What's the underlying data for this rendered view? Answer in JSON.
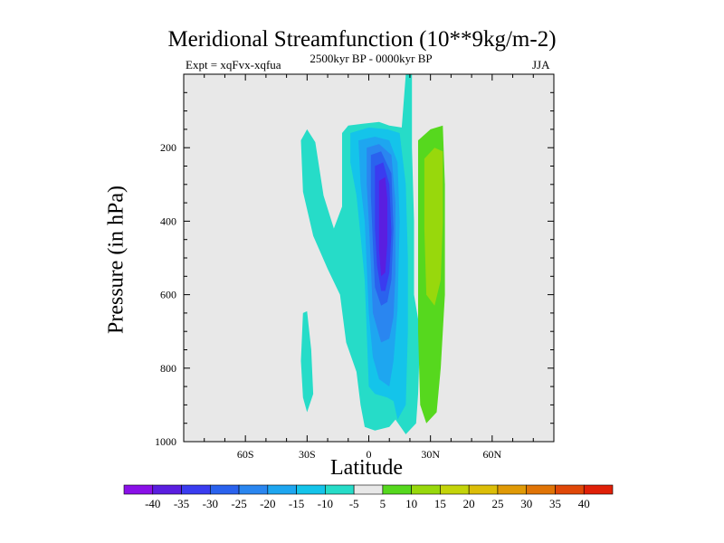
{
  "chart_data": {
    "type": "contour",
    "title": "Meridional Streamfunction (10**9kg/m-2)",
    "left_annotation": "Expt = xqFvx-xqfua",
    "center_annotation": "2500kyr BP - 0000kyr BP",
    "right_annotation": "JJA",
    "xlabel": "Latitude",
    "ylabel": "Pressure (in hPa)",
    "x_ticks": [
      {
        "value": -60,
        "label": "60S"
      },
      {
        "value": -30,
        "label": "30S"
      },
      {
        "value": 0,
        "label": "0"
      },
      {
        "value": 30,
        "label": "30N"
      },
      {
        "value": 60,
        "label": "60N"
      }
    ],
    "y_ticks": [
      {
        "value": 200,
        "label": "200"
      },
      {
        "value": 400,
        "label": "400"
      },
      {
        "value": 600,
        "label": "600"
      },
      {
        "value": 800,
        "label": "800"
      },
      {
        "value": 1000,
        "label": "1000"
      }
    ],
    "xlim": [
      -90,
      90
    ],
    "ylim": [
      0,
      1000
    ],
    "background_color": "#e8e8e8",
    "colorbar": {
      "labels": [
        "-40",
        "-35",
        "-30",
        "-25",
        "-20",
        "-15",
        "-10",
        "-5",
        "5",
        "10",
        "15",
        "20",
        "25",
        "30",
        "35",
        "40"
      ],
      "colors": [
        "#8a10e8",
        "#5a1ee0",
        "#3a3cf0",
        "#2a62ee",
        "#2a86f0",
        "#1ea6f0",
        "#14c4ea",
        "#26dcc8",
        "#e8e8e8",
        "#56d81e",
        "#98d80c",
        "#c4d40a",
        "#dcbe08",
        "#e09a06",
        "#e07406",
        "#e04808",
        "#e02008"
      ]
    },
    "regions": [
      {
        "name": "region-sh-polar-minus5",
        "level": "-5",
        "points": [
          [
            -30,
            920
          ],
          [
            -27,
            870
          ],
          [
            -28,
            750
          ],
          [
            -30,
            645
          ],
          [
            -32,
            650
          ],
          [
            -33,
            780
          ],
          [
            -32,
            880
          ]
        ]
      },
      {
        "name": "region-sh-minus5",
        "level": "-5",
        "points": [
          [
            -33,
            180
          ],
          [
            -30,
            150
          ],
          [
            -26,
            185
          ],
          [
            -22,
            330
          ],
          [
            -17,
            420
          ],
          [
            -13,
            360
          ],
          [
            -13,
            250
          ],
          [
            -13,
            160
          ],
          [
            -10,
            140
          ],
          [
            -3,
            135
          ],
          [
            5,
            130
          ],
          [
            10,
            140
          ],
          [
            16,
            145
          ],
          [
            18,
            0
          ],
          [
            21,
            0
          ],
          [
            21,
            200
          ],
          [
            22,
            400
          ],
          [
            22,
            600
          ],
          [
            25,
            700
          ],
          [
            24,
            870
          ],
          [
            23,
            950
          ],
          [
            18,
            980
          ],
          [
            13,
            940
          ],
          [
            10,
            960
          ],
          [
            3,
            970
          ],
          [
            -2,
            960
          ],
          [
            -4,
            900
          ],
          [
            -6,
            810
          ],
          [
            -11,
            730
          ],
          [
            -14,
            600
          ],
          [
            -20,
            530
          ],
          [
            -27,
            440
          ],
          [
            -32,
            320
          ]
        ]
      },
      {
        "name": "region-minus10",
        "level": "-10",
        "points": [
          [
            -9,
            160
          ],
          [
            0,
            145
          ],
          [
            9,
            150
          ],
          [
            15,
            160
          ],
          [
            18,
            300
          ],
          [
            19,
            500
          ],
          [
            19,
            700
          ],
          [
            18,
            900
          ],
          [
            14,
            940
          ],
          [
            12,
            890
          ],
          [
            9,
            880
          ],
          [
            3,
            870
          ],
          [
            0,
            850
          ],
          [
            -1,
            700
          ],
          [
            -2,
            560
          ],
          [
            -4,
            440
          ],
          [
            -6,
            330
          ],
          [
            -9,
            240
          ]
        ]
      },
      {
        "name": "region-minus15",
        "level": "-15",
        "points": [
          [
            -5,
            180
          ],
          [
            3,
            170
          ],
          [
            10,
            180
          ],
          [
            14,
            240
          ],
          [
            15,
            400
          ],
          [
            14,
            640
          ],
          [
            12,
            780
          ],
          [
            10,
            850
          ],
          [
            5,
            830
          ],
          [
            2,
            770
          ],
          [
            0,
            650
          ],
          [
            -1,
            520
          ],
          [
            -2,
            400
          ],
          [
            -4,
            300
          ]
        ]
      },
      {
        "name": "region-minus20",
        "level": "-20",
        "points": [
          [
            -1,
            200
          ],
          [
            5,
            190
          ],
          [
            11,
            220
          ],
          [
            13,
            350
          ],
          [
            13,
            540
          ],
          [
            12,
            660
          ],
          [
            10,
            720
          ],
          [
            6,
            730
          ],
          [
            2,
            650
          ],
          [
            1,
            520
          ],
          [
            0,
            400
          ],
          [
            -1,
            300
          ]
        ]
      },
      {
        "name": "region-minus25",
        "level": "-25",
        "points": [
          [
            1,
            220
          ],
          [
            6,
            210
          ],
          [
            11,
            270
          ],
          [
            12,
            420
          ],
          [
            11,
            560
          ],
          [
            9,
            620
          ],
          [
            6,
            630
          ],
          [
            3,
            580
          ],
          [
            2,
            460
          ],
          [
            1,
            330
          ]
        ]
      },
      {
        "name": "region-minus30",
        "level": "-30",
        "points": [
          [
            3,
            250
          ],
          [
            7,
            240
          ],
          [
            10,
            300
          ],
          [
            11,
            430
          ],
          [
            10,
            540
          ],
          [
            8,
            590
          ],
          [
            6,
            590
          ],
          [
            4,
            520
          ],
          [
            3,
            420
          ],
          [
            3,
            320
          ]
        ]
      },
      {
        "name": "region-minus35",
        "level": "-35",
        "points": [
          [
            5,
            290
          ],
          [
            8,
            280
          ],
          [
            9,
            340
          ],
          [
            9,
            460
          ],
          [
            8,
            540
          ],
          [
            6,
            550
          ],
          [
            5,
            480
          ],
          [
            5,
            370
          ]
        ]
      },
      {
        "name": "region-plus5",
        "level": "5",
        "points": [
          [
            24,
            180
          ],
          [
            30,
            150
          ],
          [
            36,
            140
          ],
          [
            37,
            300
          ],
          [
            37,
            600
          ],
          [
            35,
            800
          ],
          [
            33,
            920
          ],
          [
            28,
            950
          ],
          [
            25,
            900
          ],
          [
            24,
            700
          ],
          [
            24,
            400
          ]
        ]
      },
      {
        "name": "region-plus10",
        "level": "10",
        "points": [
          [
            27,
            230
          ],
          [
            32,
            200
          ],
          [
            36,
            210
          ],
          [
            36,
            400
          ],
          [
            35,
            560
          ],
          [
            32,
            630
          ],
          [
            28,
            600
          ],
          [
            27,
            420
          ]
        ]
      }
    ]
  }
}
